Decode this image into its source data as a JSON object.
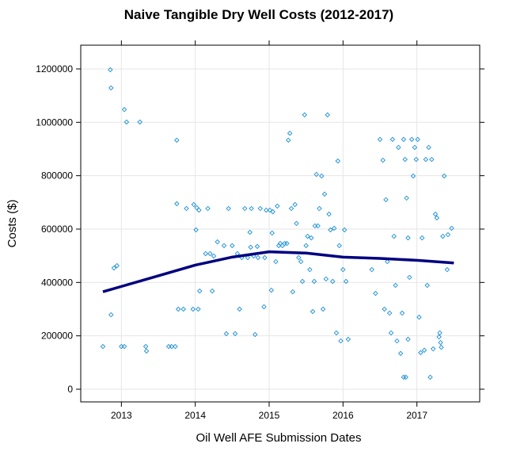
{
  "chart_data": {
    "type": "scatter",
    "title": "Naive Tangible Dry Well Costs (2012-2017)",
    "x_label": "Oil Well AFE Submission Dates",
    "y_label": "Costs ($)",
    "color": "#1a8fd6",
    "grid": true,
    "xlim": [
      2012.45,
      2017.85
    ],
    "ylim": [
      -47500,
      1289000
    ],
    "xticks": [
      2013,
      2014,
      2015,
      2016,
      2017
    ],
    "yticks": [
      0,
      200000,
      400000,
      600000,
      800000,
      1000000,
      1200000
    ],
    "x": [
      2012.75,
      2012.85,
      2012.86,
      2012.86,
      2012.9,
      2012.94,
      2013.0,
      2013.04,
      2013.04,
      2013.07,
      2013.25,
      2013.33,
      2013.34,
      2013.64,
      2013.68,
      2013.73,
      2013.75,
      2013.75,
      2013.77,
      2013.84,
      2013.88,
      2013.97,
      2013.98,
      2014.01,
      2014.02,
      2014.04,
      2014.05,
      2014.06,
      2014.14,
      2014.17,
      2014.2,
      2014.23,
      2014.25,
      2014.3,
      2014.39,
      2014.42,
      2014.45,
      2014.5,
      2014.54,
      2014.57,
      2014.6,
      2014.63,
      2014.67,
      2014.71,
      2014.74,
      2014.75,
      2014.76,
      2014.79,
      2014.81,
      2014.84,
      2014.85,
      2014.88,
      2014.93,
      2014.94,
      2014.96,
      2015.01,
      2015.03,
      2015.04,
      2015.05,
      2015.09,
      2015.11,
      2015.13,
      2015.15,
      2015.18,
      2015.21,
      2015.24,
      2015.26,
      2015.28,
      2015.3,
      2015.32,
      2015.35,
      2015.37,
      2015.4,
      2015.43,
      2015.45,
      2015.48,
      2015.5,
      2015.52,
      2015.55,
      2015.57,
      2015.59,
      2015.61,
      2015.62,
      2015.64,
      2015.66,
      2015.68,
      2015.71,
      2015.73,
      2015.75,
      2015.77,
      2015.79,
      2015.81,
      2015.83,
      2015.86,
      2015.88,
      2015.91,
      2015.93,
      2015.95,
      2015.97,
      2016.0,
      2016.02,
      2016.04,
      2016.07,
      2016.39,
      2016.44,
      2016.5,
      2016.54,
      2016.56,
      2016.58,
      2016.6,
      2016.63,
      2016.65,
      2016.67,
      2016.69,
      2016.71,
      2016.73,
      2016.75,
      2016.78,
      2016.8,
      2016.82,
      2016.84,
      2016.86,
      2016.88,
      2016.9,
      2016.93,
      2016.95,
      2016.97,
      2016.99,
      2017.01,
      2017.03,
      2017.05,
      2017.07,
      2017.1,
      2017.12,
      2017.14,
      2017.16,
      2017.18,
      2017.2,
      2017.22,
      2017.25,
      2017.27,
      2017.3,
      2017.31,
      2017.32,
      2017.33,
      2017.35,
      2017.37,
      2017.41,
      2017.42,
      2017.47,
      2016.82,
      2016.85,
      2016.88
    ],
    "y": [
      160000,
      1197000,
      1129000,
      279000,
      454000,
      463000,
      160000,
      160000,
      1048000,
      1001000,
      1001000,
      160000,
      143000,
      160000,
      160000,
      160000,
      933000,
      695000,
      300000,
      300000,
      677000,
      300000,
      692000,
      597000,
      680000,
      300000,
      671000,
      368000,
      508000,
      677000,
      508000,
      368000,
      499000,
      552000,
      538000,
      208000,
      677000,
      538000,
      208000,
      508000,
      300000,
      493000,
      677000,
      493000,
      588000,
      532000,
      677000,
      499000,
      205000,
      535000,
      493000,
      677000,
      309000,
      493000,
      671000,
      671000,
      371000,
      585000,
      665000,
      478000,
      686000,
      538000,
      546000,
      538000,
      546000,
      546000,
      933000,
      959000,
      677000,
      365000,
      692000,
      621000,
      493000,
      478000,
      404000,
      1028000,
      538000,
      573000,
      448000,
      567000,
      291000,
      404000,
      612000,
      805000,
      612000,
      677000,
      799000,
      300000,
      731000,
      413000,
      1028000,
      656000,
      597000,
      404000,
      603000,
      211000,
      855000,
      538000,
      181000,
      448000,
      597000,
      404000,
      187000,
      448000,
      359000,
      936000,
      858000,
      300000,
      710000,
      478000,
      285000,
      211000,
      936000,
      573000,
      389000,
      181000,
      906000,
      134000,
      285000,
      936000,
      861000,
      716000,
      567000,
      419000,
      936000,
      799000,
      906000,
      861000,
      936000,
      270000,
      137000,
      567000,
      146000,
      861000,
      389000,
      906000,
      45000,
      861000,
      151000,
      656000,
      642000,
      196000,
      211000,
      175000,
      157000,
      573000,
      799000,
      448000,
      579000,
      603000,
      45000,
      45000,
      187000
    ],
    "line": {
      "color": "#000080",
      "x": [
        2012.75,
        2013.0,
        2013.5,
        2014.0,
        2014.5,
        2015.0,
        2015.5,
        2016.0,
        2016.5,
        2017.0,
        2017.5
      ],
      "y": [
        365000,
        385000,
        425000,
        465000,
        495000,
        515000,
        510000,
        495000,
        490000,
        483000,
        473000
      ]
    }
  }
}
